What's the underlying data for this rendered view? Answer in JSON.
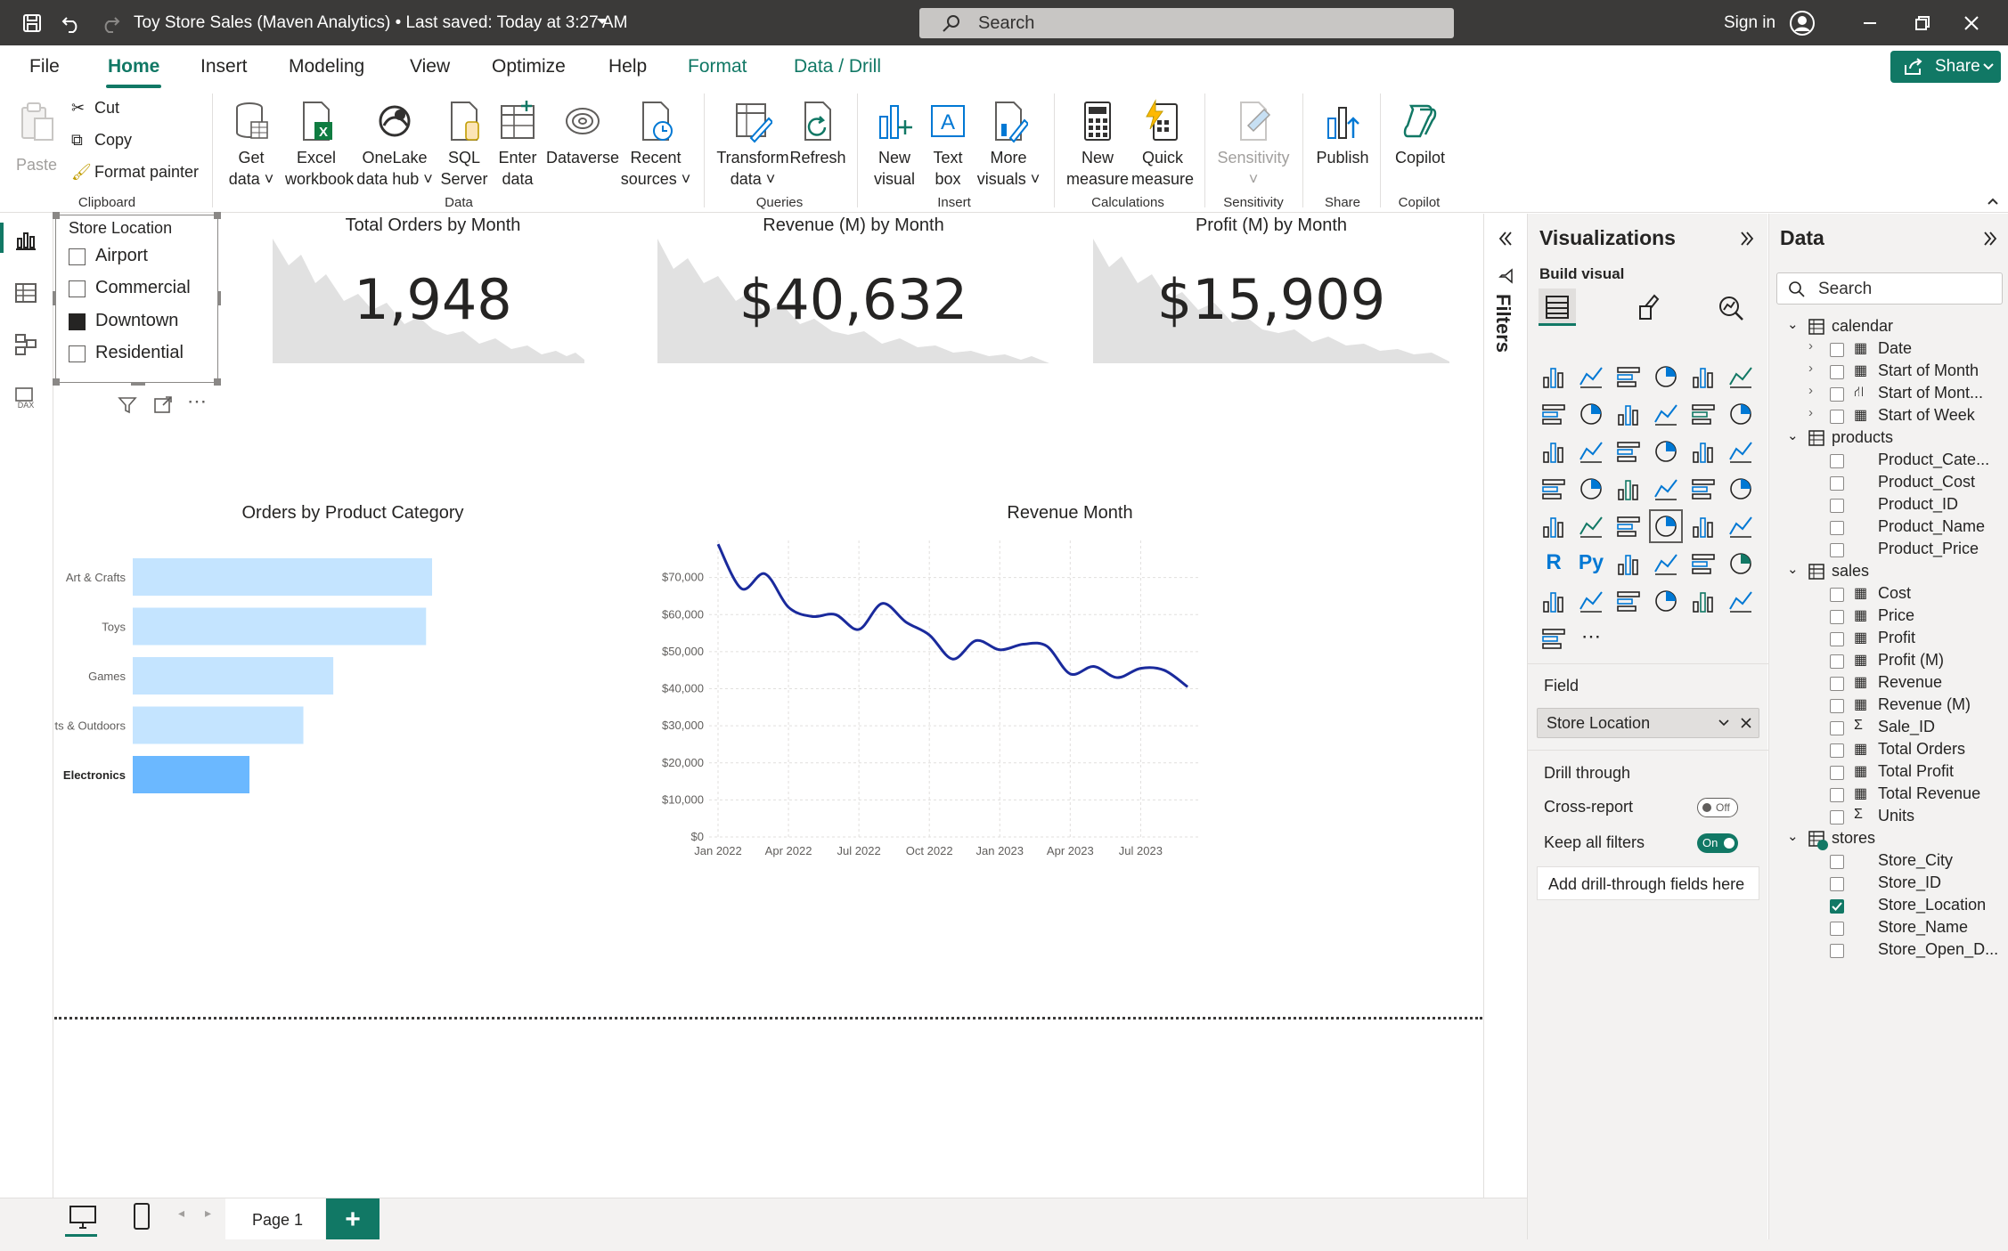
{
  "titlebar": {
    "title": "Toy Store Sales (Maven Analytics) • Last saved: Today at 3:27 AM",
    "search_placeholder": "Search",
    "sign_in": "Sign in"
  },
  "tabs": [
    {
      "label": "File"
    },
    {
      "label": "Home"
    },
    {
      "label": "Insert"
    },
    {
      "label": "Modeling"
    },
    {
      "label": "View"
    },
    {
      "label": "Optimize"
    },
    {
      "label": "Help"
    },
    {
      "label": "Format"
    },
    {
      "label": "Data / Drill"
    }
  ],
  "share_label": "Share",
  "ribbon": {
    "paste": "Paste",
    "cut": "Cut",
    "copy": "Copy",
    "format_painter": "Format painter",
    "get_data": [
      "Get",
      "data"
    ],
    "excel": [
      "Excel",
      "workbook"
    ],
    "onelake": [
      "OneLake",
      "data hub"
    ],
    "sql": [
      "SQL",
      "Server"
    ],
    "enter": [
      "Enter",
      "data"
    ],
    "dataverse": "Dataverse",
    "recent": [
      "Recent",
      "sources"
    ],
    "transform": [
      "Transform",
      "data"
    ],
    "refresh": "Refresh",
    "new_visual": [
      "New",
      "visual"
    ],
    "text_box": [
      "Text",
      "box"
    ],
    "more_visuals": [
      "More",
      "visuals"
    ],
    "new_measure": [
      "New",
      "measure"
    ],
    "quick_measure": [
      "Quick",
      "measure"
    ],
    "sensitivity": "Sensitivity",
    "publish": "Publish",
    "copilot": "Copilot",
    "groups": {
      "clipboard": "Clipboard",
      "data": "Data",
      "queries": "Queries",
      "insert": "Insert",
      "calculations": "Calculations",
      "sensitivity": "Sensitivity",
      "share": "Share",
      "copilot": "Copilot"
    }
  },
  "slicer": {
    "title": "Store Location",
    "items": [
      {
        "label": "Airport",
        "checked": false
      },
      {
        "label": "Commercial",
        "checked": false
      },
      {
        "label": "Downtown",
        "checked": true
      },
      {
        "label": "Residential",
        "checked": false
      }
    ]
  },
  "cards": [
    {
      "title": "Total Orders by Month",
      "value": "1,948"
    },
    {
      "title": "Revenue (M) by Month",
      "value": "$40,632"
    },
    {
      "title": "Profit (M) by Month",
      "value": "$15,909"
    }
  ],
  "chart_data": [
    {
      "type": "bar",
      "title": "Orders by Product Category",
      "orientation": "horizontal",
      "categories": [
        "Art & Crafts",
        "Toys",
        "Games",
        "Sports & Outdoors",
        "Electronics"
      ],
      "values": [
        100,
        98,
        67,
        57,
        39
      ],
      "highlighted": "Electronics",
      "colors": {
        "bar": "#c4e4ff",
        "highlight": "#6bb8ff"
      }
    },
    {
      "type": "line",
      "title": "Revenue Month",
      "x": [
        "Jan 2022",
        "Feb 2022",
        "Mar 2022",
        "Apr 2022",
        "May 2022",
        "Jun 2022",
        "Jul 2022",
        "Aug 2022",
        "Sep 2022",
        "Oct 2022",
        "Nov 2022",
        "Dec 2022",
        "Jan 2023",
        "Feb 2023",
        "Mar 2023",
        "Apr 2023",
        "May 2023",
        "Jun 2023",
        "Jul 2023",
        "Aug 2023",
        "Sep 2023"
      ],
      "x_ticks": [
        "Jan 2022",
        "Apr 2022",
        "Jul 2022",
        "Oct 2022",
        "Jan 2023",
        "Apr 2023",
        "Jul 2023"
      ],
      "y": [
        79000,
        67000,
        71000,
        62000,
        59500,
        60000,
        56000,
        63000,
        58000,
        54500,
        48000,
        53000,
        50500,
        52000,
        51500,
        44000,
        46000,
        43000,
        45500,
        45000,
        40500
      ],
      "ylim": [
        0,
        80000
      ],
      "y_ticks": [
        "$0",
        "$10,000",
        "$20,000",
        "$30,000",
        "$40,000",
        "$50,000",
        "$60,000",
        "$70,000"
      ],
      "y_tick_values": [
        0,
        10000,
        20000,
        30000,
        40000,
        50000,
        60000,
        70000
      ],
      "colors": {
        "line": "#1a2a9c"
      },
      "grid": true
    }
  ],
  "viz_pane": {
    "title": "Visualizations",
    "build_visual": "Build visual",
    "field_label": "Field",
    "field_value": "Store Location",
    "drill_through": "Drill through",
    "cross_report": "Cross-report",
    "cross_report_state": "Off",
    "keep_all_filters": "Keep all filters",
    "keep_all_state": "On",
    "add_drill": "Add drill-through fields here"
  },
  "filters_label": "Filters",
  "data_pane": {
    "title": "Data",
    "search_placeholder": "Search",
    "tables": [
      {
        "name": "calendar",
        "fields": [
          {
            "name": "Date",
            "type": "hierarchy",
            "expandable": true
          },
          {
            "name": "Start of Month",
            "type": "hierarchy",
            "expandable": true
          },
          {
            "name": "Start of Mont...",
            "type": "hier2",
            "expandable": true
          },
          {
            "name": "Start of Week",
            "type": "hierarchy",
            "expandable": true
          }
        ]
      },
      {
        "name": "products",
        "fields": [
          {
            "name": "Product_Cate...",
            "type": "text"
          },
          {
            "name": "Product_Cost",
            "type": "text"
          },
          {
            "name": "Product_ID",
            "type": "text"
          },
          {
            "name": "Product_Name",
            "type": "text"
          },
          {
            "name": "Product_Price",
            "type": "text"
          }
        ]
      },
      {
        "name": "sales",
        "fields": [
          {
            "name": "Cost",
            "type": "calc"
          },
          {
            "name": "Price",
            "type": "calc"
          },
          {
            "name": "Profit",
            "type": "calc"
          },
          {
            "name": "Profit (M)",
            "type": "measure"
          },
          {
            "name": "Revenue",
            "type": "calc"
          },
          {
            "name": "Revenue (M)",
            "type": "measure"
          },
          {
            "name": "Sale_ID",
            "type": "sum"
          },
          {
            "name": "Total Orders",
            "type": "measure"
          },
          {
            "name": "Total Profit",
            "type": "measure"
          },
          {
            "name": "Total Revenue",
            "type": "measure"
          },
          {
            "name": "Units",
            "type": "sum"
          }
        ]
      },
      {
        "name": "stores",
        "fields": [
          {
            "name": "Store_City",
            "type": "text"
          },
          {
            "name": "Store_ID",
            "type": "text"
          },
          {
            "name": "Store_Location",
            "type": "text",
            "checked": true
          },
          {
            "name": "Store_Name",
            "type": "text"
          },
          {
            "name": "Store_Open_D...",
            "type": "text"
          }
        ]
      }
    ]
  },
  "page_tab": "Page 1",
  "add_page": "+"
}
